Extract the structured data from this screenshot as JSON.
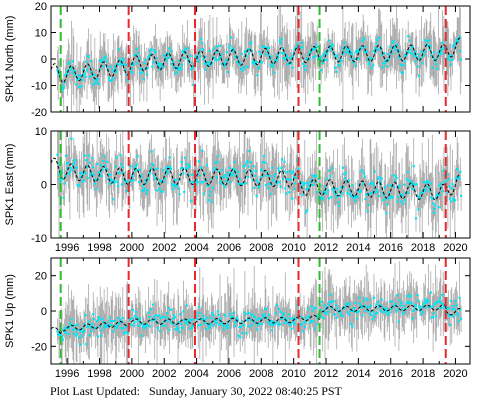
{
  "footer": {
    "label": "Plot Last Updated:",
    "timestamp": "Sunday, January 30, 2022 08:40:25 PST"
  },
  "colors": {
    "observed": "#00e5f5",
    "error_bars": "#a9a9a9",
    "model": "#000000",
    "event_red": "#e8282a",
    "event_green": "#2ebd2e"
  },
  "chart_data": [
    {
      "type": "scatter",
      "ylabel": "SPK1 North (mm)",
      "xlim": [
        1995.0,
        2020.9
      ],
      "ylim": [
        -20,
        20
      ],
      "yticks": [
        -20,
        -10,
        0,
        10,
        20
      ],
      "xticks": [
        1996,
        1998,
        2000,
        2002,
        2004,
        2006,
        2008,
        2010,
        2012,
        2014,
        2016,
        2018,
        2020
      ],
      "tick_labels_shown": false,
      "event_lines": [
        {
          "x": 1995.6,
          "color": "green"
        },
        {
          "x": 1999.8,
          "color": "red"
        },
        {
          "x": 2003.9,
          "color": "red"
        },
        {
          "x": 2010.3,
          "color": "red"
        },
        {
          "x": 2011.6,
          "color": "green"
        },
        {
          "x": 2019.4,
          "color": "red"
        }
      ],
      "model_segments": [
        {
          "x": [
            1995.0,
            1995.6
          ],
          "y": [
            -4,
            -6
          ]
        },
        {
          "x": [
            1995.6,
            1999.8
          ],
          "y": [
            -6,
            -3
          ]
        },
        {
          "x": [
            1999.8,
            2003.9
          ],
          "y": [
            -2,
            0
          ]
        },
        {
          "x": [
            2003.9,
            2010.3
          ],
          "y": [
            0,
            1.5
          ]
        },
        {
          "x": [
            2010.3,
            2011.6
          ],
          "y": [
            1.5,
            1.8
          ]
        },
        {
          "x": [
            2011.6,
            2019.4
          ],
          "y": [
            1.8,
            2.5
          ]
        },
        {
          "x": [
            2019.4,
            2020.3
          ],
          "y": [
            3,
            5
          ]
        }
      ],
      "seasonal_amplitude": 3,
      "scatter_sigma": 2,
      "error_sigma": 6
    },
    {
      "type": "scatter",
      "ylabel": "SPK1 East (mm)",
      "xlim": [
        1995.0,
        2020.9
      ],
      "ylim": [
        -10,
        10
      ],
      "yticks": [
        -10,
        0,
        10
      ],
      "xticks": [
        1996,
        1998,
        2000,
        2002,
        2004,
        2006,
        2008,
        2010,
        2012,
        2014,
        2016,
        2018,
        2020
      ],
      "tick_labels_shown": true,
      "event_lines": [
        {
          "x": 1995.6,
          "color": "green"
        },
        {
          "x": 1999.8,
          "color": "red"
        },
        {
          "x": 2003.9,
          "color": "red"
        },
        {
          "x": 2010.3,
          "color": "red"
        },
        {
          "x": 2011.6,
          "color": "green"
        },
        {
          "x": 2019.4,
          "color": "red"
        }
      ],
      "model_segments": [
        {
          "x": [
            1995.0,
            1995.6
          ],
          "y": [
            4,
            2.5
          ]
        },
        {
          "x": [
            1995.6,
            1999.8
          ],
          "y": [
            2.5,
            1.5
          ]
        },
        {
          "x": [
            1999.8,
            2003.9
          ],
          "y": [
            1.5,
            1.5
          ]
        },
        {
          "x": [
            2003.9,
            2010.3
          ],
          "y": [
            1.5,
            1
          ]
        },
        {
          "x": [
            2010.3,
            2011.6
          ],
          "y": [
            -0.5,
            -0.5
          ]
        },
        {
          "x": [
            2011.6,
            2019.4
          ],
          "y": [
            -0.5,
            -1.5
          ]
        },
        {
          "x": [
            2019.4,
            2020.3
          ],
          "y": [
            -1,
            0.5
          ]
        }
      ],
      "seasonal_amplitude": 1.5,
      "scatter_sigma": 1.5,
      "error_sigma": 3.5
    },
    {
      "type": "scatter",
      "ylabel": "SPK1 Up (mm)",
      "xlim": [
        1995.0,
        2020.9
      ],
      "ylim": [
        -30,
        30
      ],
      "yticks": [
        -20,
        0,
        20
      ],
      "xticks": [
        1996,
        1998,
        2000,
        2002,
        2004,
        2006,
        2008,
        2010,
        2012,
        2014,
        2016,
        2018,
        2020
      ],
      "tick_labels_shown": true,
      "event_lines": [
        {
          "x": 1995.6,
          "color": "green"
        },
        {
          "x": 1999.8,
          "color": "red"
        },
        {
          "x": 2003.9,
          "color": "red"
        },
        {
          "x": 2010.3,
          "color": "red"
        },
        {
          "x": 2011.6,
          "color": "green"
        },
        {
          "x": 2019.4,
          "color": "red"
        }
      ],
      "model_segments": [
        {
          "x": [
            1995.0,
            1995.6
          ],
          "y": [
            -10,
            -12
          ]
        },
        {
          "x": [
            1995.6,
            1999.8
          ],
          "y": [
            -10,
            -7
          ]
        },
        {
          "x": [
            1999.8,
            2003.9
          ],
          "y": [
            -6,
            -6
          ]
        },
        {
          "x": [
            2003.9,
            2010.3
          ],
          "y": [
            -6,
            -5
          ]
        },
        {
          "x": [
            2010.3,
            2011.6
          ],
          "y": [
            -4,
            -4
          ]
        },
        {
          "x": [
            2011.6,
            2019.4
          ],
          "y": [
            1,
            2
          ]
        },
        {
          "x": [
            2019.4,
            2020.3
          ],
          "y": [
            -1,
            0
          ]
        }
      ],
      "seasonal_amplitude": 1.5,
      "scatter_sigma": 3,
      "error_sigma": 9
    }
  ]
}
